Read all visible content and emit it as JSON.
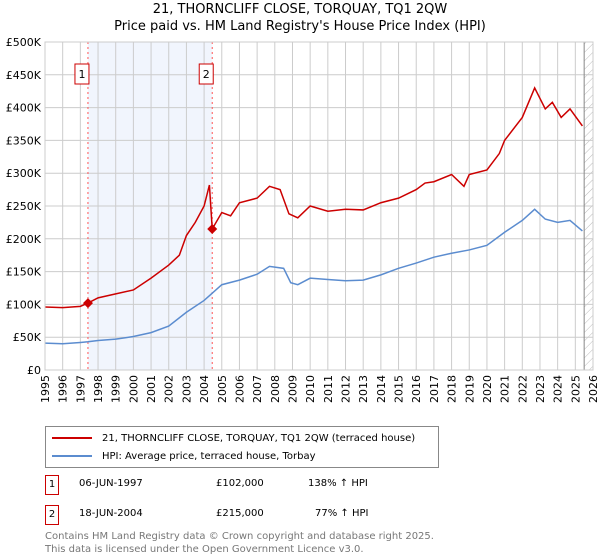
{
  "chart_data": {
    "type": "line",
    "title": "21, THORNCLIFF CLOSE, TORQUAY, TQ1 2QW",
    "subtitle": "Price paid vs. HM Land Registry's House Price Index (HPI)",
    "xlim": [
      1995,
      2026
    ],
    "ylim": [
      0,
      500000
    ],
    "x_ticks": [
      "1995",
      "1996",
      "1997",
      "1998",
      "1999",
      "2000",
      "2001",
      "2002",
      "2003",
      "2004",
      "2005",
      "2006",
      "2007",
      "2008",
      "2009",
      "2010",
      "2011",
      "2012",
      "2013",
      "2014",
      "2015",
      "2016",
      "2017",
      "2018",
      "2019",
      "2020",
      "2021",
      "2022",
      "2023",
      "2024",
      "2025",
      "2026"
    ],
    "y_ticks": [
      "£0",
      "£50K",
      "£100K",
      "£150K",
      "£200K",
      "£250K",
      "£300K",
      "£350K",
      "£400K",
      "£450K",
      "£500K"
    ],
    "grid": true,
    "series": [
      {
        "name": "21, THORNCLIFF CLOSE, TORQUAY, TQ1 2QW (terraced house)",
        "color": "#cc0000",
        "x": [
          1995,
          1996,
          1997,
          1997.43,
          1998,
          1999,
          2000,
          2001,
          2002,
          2002.6,
          2003,
          2003.5,
          2004,
          2004.3,
          2004.46,
          2005,
          2005.5,
          2006,
          2007,
          2007.7,
          2008.3,
          2008.8,
          2009.3,
          2010,
          2011,
          2012,
          2013,
          2014,
          2015,
          2016,
          2016.5,
          2017,
          2018,
          2018.7,
          2019,
          2020,
          2020.7,
          2021,
          2022,
          2022.7,
          2023.3,
          2023.7,
          2024.2,
          2024.7,
          2025.4
        ],
        "y": [
          96000,
          95000,
          97000,
          102000,
          110000,
          116000,
          122000,
          140000,
          160000,
          175000,
          205000,
          225000,
          250000,
          282000,
          215000,
          240000,
          235000,
          255000,
          262000,
          280000,
          275000,
          238000,
          232000,
          250000,
          242000,
          245000,
          244000,
          255000,
          262000,
          275000,
          285000,
          287000,
          298000,
          280000,
          298000,
          305000,
          330000,
          350000,
          385000,
          430000,
          398000,
          408000,
          385000,
          398000,
          372000
        ]
      },
      {
        "name": "HPI: Average price, terraced house, Torbay",
        "color": "#5b8ccf",
        "x": [
          1995,
          1996,
          1997,
          1997.43,
          1998,
          1999,
          2000,
          2001,
          2002,
          2003,
          2004,
          2004.46,
          2005,
          2006,
          2007,
          2007.7,
          2008.5,
          2008.9,
          2009.3,
          2010,
          2011,
          2012,
          2013,
          2014,
          2015,
          2016,
          2017,
          2018,
          2019,
          2020,
          2021,
          2022,
          2022.7,
          2023.3,
          2024,
          2024.7,
          2025.4
        ],
        "y": [
          41000,
          40000,
          42000,
          43000,
          45000,
          47000,
          51000,
          57000,
          67000,
          88000,
          106000,
          117000,
          130000,
          137000,
          146000,
          158000,
          155000,
          133000,
          130000,
          140000,
          138000,
          136000,
          137000,
          145000,
          155000,
          163000,
          172000,
          178000,
          183000,
          190000,
          210000,
          228000,
          245000,
          230000,
          225000,
          228000,
          212000
        ]
      }
    ],
    "sales": [
      {
        "label": "1",
        "x": 1997.43,
        "y": 102000
      },
      {
        "label": "2",
        "x": 2004.46,
        "y": 215000
      }
    ],
    "forecast_start": 2025.5
  },
  "legend": {
    "series1": "21, THORNCLIFF CLOSE, TORQUAY, TQ1 2QW (terraced house)",
    "series2": "HPI: Average price, terraced house, Torbay"
  },
  "sales_table": [
    {
      "num": "1",
      "date": "06-JUN-1997",
      "price": "£102,000",
      "hpi": "138% ↑ HPI"
    },
    {
      "num": "2",
      "date": "18-JUN-2004",
      "price": "£215,000",
      "hpi": "77% ↑ HPI"
    }
  ],
  "footer": {
    "line1": "Contains HM Land Registry data © Crown copyright and database right 2025.",
    "line2": "This data is licensed under the Open Government Licence v3.0."
  }
}
